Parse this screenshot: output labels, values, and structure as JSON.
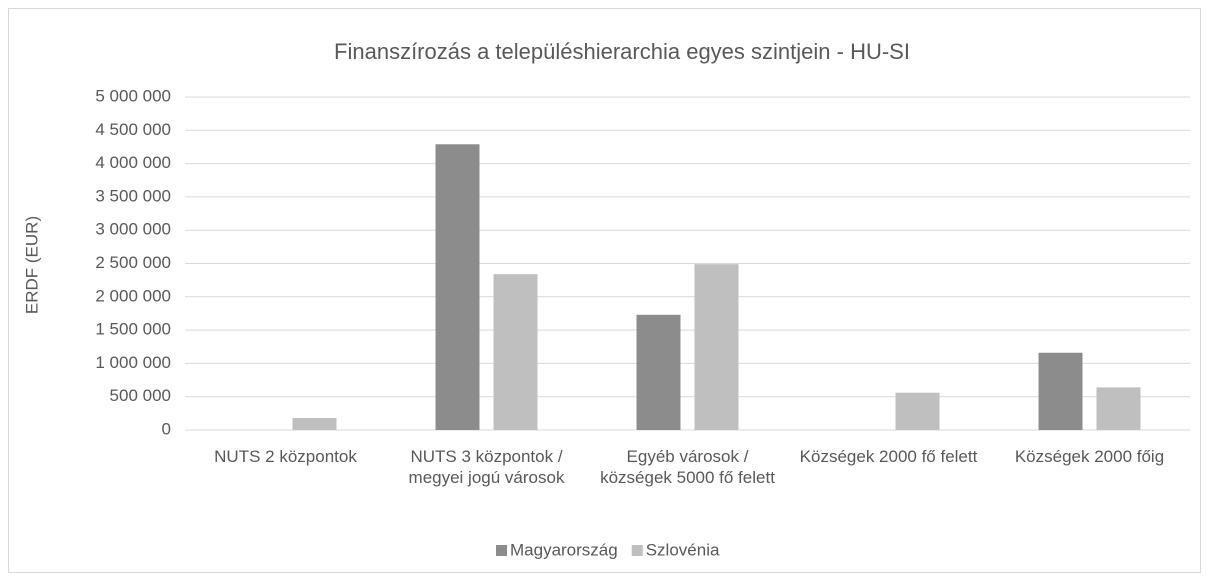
{
  "chart_data": {
    "type": "bar",
    "title": "Finanszírozás a településhierarchia egyes szintjein - HU-SI",
    "y_label": "ERDF (EUR)",
    "categories": [
      "NUTS 2 központok",
      "NUTS 3 központok / megyei jogú városok",
      "Egyéb városok / községek 5000 fő felett",
      "Községek 2000 fő felett",
      "Községek 2000 főig"
    ],
    "series": [
      {
        "name": "Magyarország",
        "color": "#8c8c8c",
        "values": [
          0,
          4290000,
          1730000,
          0,
          1160000
        ]
      },
      {
        "name": "Szlovénia",
        "color": "#bfbfbf",
        "values": [
          180000,
          2340000,
          2490000,
          560000,
          640000
        ]
      }
    ],
    "ylim": [
      0,
      5000000
    ],
    "yticks": [
      0,
      {
        "value": 500000,
        "label": "500 000"
      },
      {
        "value": 1000000,
        "label": "1 000 000"
      },
      {
        "value": 1500000,
        "label": "1 500 000"
      },
      {
        "value": 2000000,
        "label": "2 000 000"
      },
      {
        "value": 2500000,
        "label": "2 500 000"
      },
      {
        "value": 3000000,
        "label": "3 000 000"
      },
      {
        "value": 3500000,
        "label": "3 500 000"
      },
      {
        "value": 4000000,
        "label": "4 000 000"
      },
      {
        "value": 4500000,
        "label": "4 500 000"
      },
      {
        "value": 5000000,
        "label": "5 000 000"
      }
    ],
    "grid": true,
    "legend": "bottom"
  }
}
